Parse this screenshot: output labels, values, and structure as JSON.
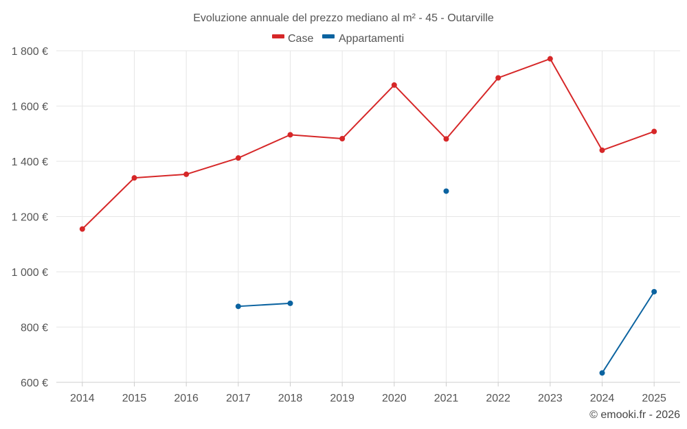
{
  "chart_data": {
    "type": "line",
    "title": "Evoluzione annuale del prezzo mediano al m² - 45 - Outarville",
    "categories": [
      "2014",
      "2015",
      "2016",
      "2017",
      "2018",
      "2019",
      "2020",
      "2021",
      "2022",
      "2023",
      "2024",
      "2025"
    ],
    "series": [
      {
        "name": "Case",
        "color": "#d62728",
        "values": [
          1155,
          1340,
          1353,
          1412,
          1496,
          1482,
          1676,
          1481,
          1702,
          1771,
          1440,
          1508
        ]
      },
      {
        "name": "Appartamenti",
        "color": "#0b63a0",
        "values": [
          null,
          null,
          null,
          875,
          886,
          null,
          null,
          1292,
          null,
          null,
          634,
          928
        ]
      }
    ],
    "y_ticks": [
      600,
      800,
      1000,
      1200,
      1400,
      1600,
      1800
    ],
    "y_tick_labels": [
      "600 €",
      "800 €",
      "1 000 €",
      "1 200 €",
      "1 400 €",
      "1 600 €",
      "1 800 €"
    ],
    "ylim": [
      600,
      1800
    ],
    "grid": true,
    "legend_position": "top-center"
  },
  "credit": "© emooki.fr - 2026"
}
